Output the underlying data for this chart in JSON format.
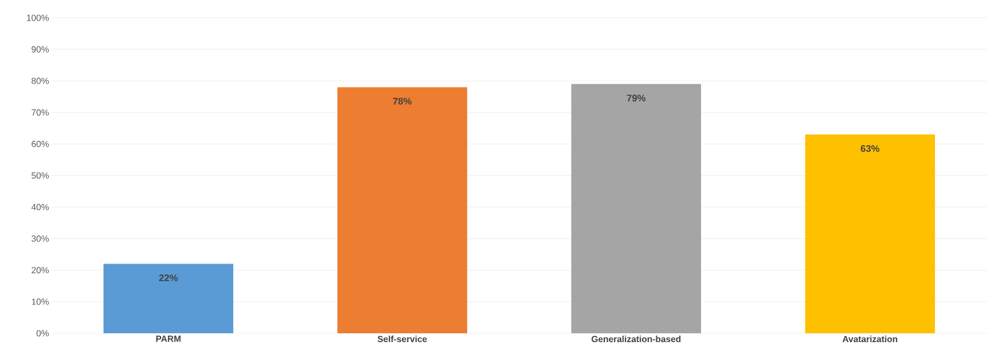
{
  "chart_data": {
    "type": "bar",
    "categories": [
      "PARM",
      "Self-service",
      "Generalization-based",
      "Avatarization"
    ],
    "values": [
      22,
      78,
      79,
      63
    ],
    "colors": [
      "#5b9bd5",
      "#ed7d31",
      "#a5a5a5",
      "#ffc000"
    ],
    "value_labels": [
      "22%",
      "78%",
      "79%",
      "63%"
    ],
    "ylim": [
      0,
      100
    ],
    "yticks": [
      {
        "value": 0,
        "label": "0%"
      },
      {
        "value": 10,
        "label": "10%"
      },
      {
        "value": 20,
        "label": "20%"
      },
      {
        "value": 30,
        "label": "30%"
      },
      {
        "value": 40,
        "label": "40%"
      },
      {
        "value": 50,
        "label": "50%"
      },
      {
        "value": 60,
        "label": "60%"
      },
      {
        "value": 70,
        "label": "70%"
      },
      {
        "value": 80,
        "label": "80%"
      },
      {
        "value": 90,
        "label": "90%"
      },
      {
        "value": 100,
        "label": "100%"
      }
    ],
    "grid": "y"
  }
}
